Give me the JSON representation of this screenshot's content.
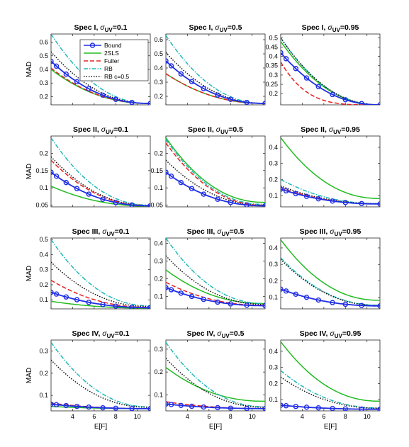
{
  "figure": {
    "xlabel": "E[F]",
    "ylabel": "MAD"
  },
  "legend": {
    "location": "inside top-right of first panel",
    "entries": [
      {
        "key": "bound",
        "label": "Bound"
      },
      {
        "key": "tsls",
        "label": "2SLS"
      },
      {
        "key": "fuller",
        "label": "Fuller"
      },
      {
        "key": "rb",
        "label": "RB"
      },
      {
        "key": "rbc",
        "label": "RB c=0.5"
      }
    ]
  },
  "styles": {
    "bound": {
      "color": "#1f2ee6",
      "dash": "",
      "marker": "circle"
    },
    "tsls": {
      "color": "#22bb22",
      "dash": "",
      "marker": "none"
    },
    "fuller": {
      "color": "#e62020",
      "dash": "6,3",
      "marker": "none"
    },
    "rb": {
      "color": "#20b8b8",
      "dash": "6,2,1.5,2",
      "marker": "none"
    },
    "rbc": {
      "color": "#111111",
      "dash": "1.5,2",
      "marker": "none"
    }
  },
  "chart_data": [
    {
      "type": "line",
      "title_prefix": "Spec I, ",
      "title_sub": "UV",
      "title_suffix": "=0.1",
      "xlim": [
        2,
        11.2
      ],
      "ylim": [
        0.14,
        0.66
      ],
      "xticks": [
        2,
        4,
        6,
        8,
        10
      ],
      "yticks": [
        0.2,
        0.3,
        0.4,
        0.5,
        0.6
      ],
      "show_xticklabels": false,
      "show_ylabel": true,
      "show_xlabel": false,
      "series": {
        "bound": {
          "y0": 0.46,
          "y1": 0.15
        },
        "tsls": {
          "y0": 0.4,
          "y1": 0.15
        },
        "fuller": {
          "y0": 0.41,
          "y1": 0.15
        },
        "rb": {
          "y0": 0.66,
          "y1": 0.15
        },
        "rbc": {
          "y0": 0.53,
          "y1": 0.15
        }
      }
    },
    {
      "type": "line",
      "title_prefix": "Spec I, ",
      "title_sub": "UV",
      "title_suffix": "=0.5",
      "xlim": [
        2,
        11.2
      ],
      "ylim": [
        0.14,
        0.64
      ],
      "xticks": [
        2,
        4,
        6,
        8,
        10
      ],
      "yticks": [
        0.2,
        0.3,
        0.4,
        0.5,
        0.6
      ],
      "show_xticklabels": false,
      "show_ylabel": false,
      "show_xlabel": false,
      "series": {
        "bound": {
          "y0": 0.45,
          "y1": 0.15
        },
        "tsls": {
          "y0": 0.36,
          "y1": 0.15
        },
        "fuller": {
          "y0": 0.36,
          "y1": 0.15
        },
        "rb": {
          "y0": 0.63,
          "y1": 0.15
        },
        "rbc": {
          "y0": 0.51,
          "y1": 0.15
        }
      }
    },
    {
      "type": "line",
      "title_prefix": "Spec I, ",
      "title_sub": "UV",
      "title_suffix": "=0.95",
      "xlim": [
        2,
        11.2
      ],
      "ylim": [
        0.14,
        0.52
      ],
      "xticks": [
        2,
        4,
        6,
        8,
        10
      ],
      "yticks": [
        0.2,
        0.25,
        0.3,
        0.35,
        0.4,
        0.45,
        0.5
      ],
      "show_xticklabels": false,
      "show_ylabel": false,
      "show_xlabel": false,
      "series": {
        "bound": {
          "y0": 0.42,
          "y1": 0.14
        },
        "tsls": {
          "y0": 0.48,
          "y1": 0.14
        },
        "fuller": {
          "y0": 0.37,
          "y1": 0.14,
          "k": 1.8
        },
        "rb": {
          "y0": 0.5,
          "y1": 0.14
        },
        "rbc": {
          "y0": 0.5,
          "y1": 0.14
        }
      }
    },
    {
      "type": "line",
      "title_prefix": "Spec II, ",
      "title_sub": "UV",
      "title_suffix": "=0.1",
      "xlim": [
        2,
        11.2
      ],
      "ylim": [
        0.045,
        0.25
      ],
      "xticks": [
        2,
        4,
        6,
        8,
        10
      ],
      "yticks": [
        0.05,
        0.1,
        0.15,
        0.2
      ],
      "show_xticklabels": false,
      "show_ylabel": true,
      "show_xlabel": false,
      "series": {
        "bound": {
          "y0": 0.145,
          "y1": 0.048
        },
        "tsls": {
          "y0": 0.105,
          "y1": 0.047
        },
        "fuller": {
          "y0": 0.18,
          "y1": 0.048
        },
        "rb": {
          "y0": 0.245,
          "y1": 0.05
        },
        "rbc": {
          "y0": 0.19,
          "y1": 0.049
        }
      }
    },
    {
      "type": "line",
      "title_prefix": "Spec II, ",
      "title_sub": "UV",
      "title_suffix": "=0.5",
      "xlim": [
        2,
        11.2
      ],
      "ylim": [
        0.045,
        0.25
      ],
      "xticks": [
        2,
        4,
        6,
        8,
        10
      ],
      "yticks": [
        0.05,
        0.1,
        0.15,
        0.2
      ],
      "show_xticklabels": false,
      "show_ylabel": false,
      "show_xlabel": false,
      "series": {
        "bound": {
          "y0": 0.145,
          "y1": 0.048
        },
        "tsls": {
          "y0": 0.245,
          "y1": 0.058
        },
        "fuller": {
          "y0": 0.23,
          "y1": 0.049
        },
        "rb": {
          "y0": 0.24,
          "y1": 0.052
        },
        "rbc": {
          "y0": 0.18,
          "y1": 0.05
        }
      }
    },
    {
      "type": "line",
      "title_prefix": "Spec II, ",
      "title_sub": "UV",
      "title_suffix": "=0.95",
      "xlim": [
        2,
        11.2
      ],
      "ylim": [
        0.03,
        0.47
      ],
      "xticks": [
        2,
        4,
        6,
        8,
        10
      ],
      "yticks": [
        0.1,
        0.2,
        0.3,
        0.4
      ],
      "show_xticklabels": false,
      "show_ylabel": false,
      "show_xlabel": false,
      "series": {
        "bound": {
          "y0": 0.14,
          "y1": 0.048
        },
        "tsls": {
          "y0": 0.46,
          "y1": 0.082
        },
        "fuller": {
          "y0": 0.15,
          "y1": 0.048
        },
        "rb": {
          "y0": 0.2,
          "y1": 0.05
        },
        "rbc": {
          "y0": 0.16,
          "y1": 0.05
        }
      }
    },
    {
      "type": "line",
      "title_prefix": "Spec III, ",
      "title_sub": "UV",
      "title_suffix": "=0.1",
      "xlim": [
        2,
        11.2
      ],
      "ylim": [
        0.04,
        0.51
      ],
      "xticks": [
        2,
        4,
        6,
        8,
        10
      ],
      "yticks": [
        0.1,
        0.2,
        0.3,
        0.4,
        0.5
      ],
      "show_xticklabels": false,
      "show_ylabel": true,
      "show_xlabel": false,
      "series": {
        "bound": {
          "y0": 0.15,
          "y1": 0.048
        },
        "tsls": {
          "y0": 0.09,
          "y1": 0.045
        },
        "fuller": {
          "y0": 0.23,
          "y1": 0.05
        },
        "rb": {
          "y0": 0.5,
          "y1": 0.06
        },
        "rbc": {
          "y0": 0.35,
          "y1": 0.055
        }
      }
    },
    {
      "type": "line",
      "title_prefix": "Spec III, ",
      "title_sub": "UV",
      "title_suffix": "=0.5",
      "xlim": [
        2,
        11.2
      ],
      "ylim": [
        0.03,
        0.43
      ],
      "xticks": [
        2,
        4,
        6,
        8,
        10
      ],
      "yticks": [
        0.1,
        0.2,
        0.3,
        0.4
      ],
      "show_xticklabels": false,
      "show_ylabel": false,
      "show_xlabel": false,
      "series": {
        "bound": {
          "y0": 0.15,
          "y1": 0.048
        },
        "tsls": {
          "y0": 0.25,
          "y1": 0.06
        },
        "fuller": {
          "y0": 0.18,
          "y1": 0.05
        },
        "rb": {
          "y0": 0.43,
          "y1": 0.06
        },
        "rbc": {
          "y0": 0.33,
          "y1": 0.055
        }
      }
    },
    {
      "type": "line",
      "title_prefix": "Spec III, ",
      "title_sub": "UV",
      "title_suffix": "=0.95",
      "xlim": [
        2,
        11.2
      ],
      "ylim": [
        0.03,
        0.46
      ],
      "xticks": [
        2,
        4,
        6,
        8,
        10
      ],
      "yticks": [
        0.1,
        0.2,
        0.3,
        0.4
      ],
      "show_xticklabels": false,
      "show_ylabel": false,
      "show_xlabel": false,
      "series": {
        "bound": {
          "y0": 0.15,
          "y1": 0.048
        },
        "tsls": {
          "y0": 0.45,
          "y1": 0.082
        },
        "fuller": {
          "y0": 0.15,
          "y1": 0.048
        },
        "rb": {
          "y0": 0.34,
          "y1": 0.052
        },
        "rbc": {
          "y0": 0.33,
          "y1": 0.05
        }
      }
    },
    {
      "type": "line",
      "title_prefix": "Spec IV, ",
      "title_sub": "UV",
      "title_suffix": "=0.1",
      "xlim": [
        2,
        11.2
      ],
      "ylim": [
        0.03,
        0.35
      ],
      "xticks": [
        4,
        6,
        8,
        10
      ],
      "yticks": [
        0.1,
        0.2,
        0.3
      ],
      "show_xticklabels": true,
      "show_ylabel": true,
      "show_xlabel": true,
      "series": {
        "bound": {
          "y0": 0.06,
          "y1": 0.04
        },
        "tsls": {
          "y0": 0.05,
          "y1": 0.04
        },
        "fuller": {
          "y0": 0.065,
          "y1": 0.04
        },
        "rb": {
          "y0": 0.34,
          "y1": 0.048
        },
        "rbc": {
          "y0": 0.26,
          "y1": 0.046
        }
      }
    },
    {
      "type": "line",
      "title_prefix": "Spec IV, ",
      "title_sub": "UV",
      "title_suffix": "=0.5",
      "xlim": [
        2,
        11.2
      ],
      "ylim": [
        0.03,
        0.34
      ],
      "xticks": [
        4,
        6,
        8,
        10
      ],
      "yticks": [
        0.1,
        0.2,
        0.3
      ],
      "show_xticklabels": true,
      "show_ylabel": false,
      "show_xlabel": true,
      "series": {
        "bound": {
          "y0": 0.06,
          "y1": 0.04
        },
        "tsls": {
          "y0": 0.22,
          "y1": 0.072
        },
        "fuller": {
          "y0": 0.07,
          "y1": 0.04
        },
        "rb": {
          "y0": 0.33,
          "y1": 0.048
        },
        "rbc": {
          "y0": 0.26,
          "y1": 0.046
        }
      }
    },
    {
      "type": "line",
      "title_prefix": "Spec IV, ",
      "title_sub": "UV",
      "title_suffix": "=0.95",
      "xlim": [
        2,
        11.2
      ],
      "ylim": [
        0.03,
        0.47
      ],
      "xticks": [
        4,
        6,
        8,
        10
      ],
      "yticks": [
        0.1,
        0.2,
        0.3,
        0.4
      ],
      "show_xticklabels": true,
      "show_ylabel": false,
      "show_xlabel": true,
      "series": {
        "bound": {
          "y0": 0.065,
          "y1": 0.04
        },
        "tsls": {
          "y0": 0.46,
          "y1": 0.09
        },
        "fuller": {
          "y0": 0.065,
          "y1": 0.04
        },
        "rb": {
          "y0": 0.28,
          "y1": 0.048
        },
        "rbc": {
          "y0": 0.24,
          "y1": 0.046
        }
      }
    }
  ]
}
